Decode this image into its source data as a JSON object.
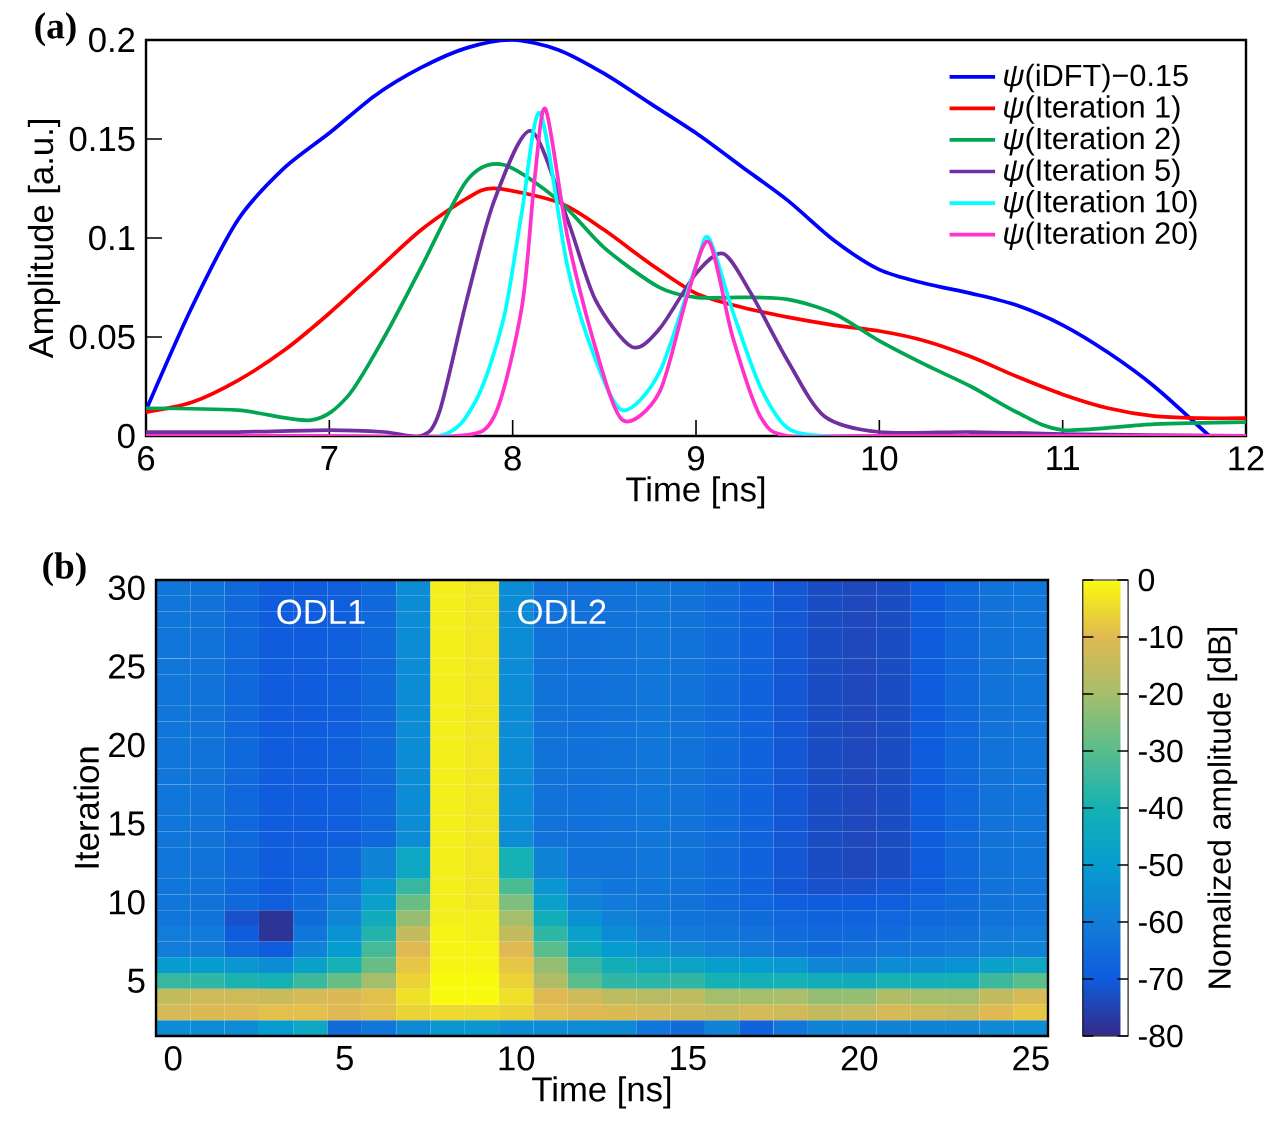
{
  "chart_data": [
    {
      "type": "line",
      "title": "(a)",
      "xlabel": "Time [ns]",
      "ylabel": "Amplitude [a.u.]",
      "xlim": [
        6,
        12
      ],
      "ylim": [
        0,
        0.2
      ],
      "xticks": [
        6,
        7,
        8,
        9,
        10,
        11,
        12
      ],
      "yticks": [
        0,
        0.05,
        0.1,
        0.15,
        0.2
      ],
      "legend": "top right",
      "series": [
        {
          "name": "*ψ*(iDFT)−0.15",
          "color": "#0000ff",
          "x": [
            6,
            6.25,
            6.5,
            6.75,
            7,
            7.25,
            7.5,
            7.75,
            8,
            8.25,
            8.5,
            8.75,
            9,
            9.25,
            9.5,
            9.75,
            10,
            10.25,
            10.5,
            10.75,
            11,
            11.25,
            11.5,
            11.8
          ],
          "values": [
            0.013,
            0.065,
            0.109,
            0.135,
            0.153,
            0.172,
            0.186,
            0.196,
            0.2,
            0.195,
            0.183,
            0.168,
            0.153,
            0.136,
            0.119,
            0.099,
            0.084,
            0.077,
            0.072,
            0.066,
            0.056,
            0.042,
            0.025,
            0
          ]
        },
        {
          "name": "*ψ*(Iteration 1)",
          "color": "#ff0000",
          "x": [
            6,
            6.25,
            6.5,
            6.75,
            7,
            7.25,
            7.5,
            7.75,
            7.9,
            8.25,
            8.5,
            8.75,
            9,
            9.25,
            9.5,
            9.75,
            10,
            10.25,
            10.5,
            10.75,
            11,
            11.25,
            11.5,
            11.75,
            12
          ],
          "values": [
            0.012,
            0.017,
            0.028,
            0.043,
            0.062,
            0.083,
            0.104,
            0.12,
            0.125,
            0.118,
            0.104,
            0.087,
            0.072,
            0.065,
            0.06,
            0.056,
            0.053,
            0.048,
            0.04,
            0.03,
            0.021,
            0.014,
            0.01,
            0.009,
            0.009
          ]
        },
        {
          "name": "*ψ*(Iteration 2)",
          "color": "#00a651",
          "x": [
            6,
            6.5,
            6.9,
            7.1,
            7.3,
            7.5,
            7.75,
            7.95,
            8.25,
            8.5,
            8.8,
            9,
            9.25,
            9.5,
            9.75,
            10,
            10.25,
            10.5,
            10.75,
            11,
            11.5,
            12
          ],
          "values": [
            0.014,
            0.013,
            0.008,
            0.02,
            0.05,
            0.085,
            0.129,
            0.137,
            0.119,
            0.095,
            0.075,
            0.07,
            0.07,
            0.069,
            0.062,
            0.048,
            0.036,
            0.025,
            0.012,
            0.003,
            0.006,
            0.007
          ]
        },
        {
          "name": "*ψ*(Iteration 5)",
          "color": "#7030a0",
          "x": [
            6,
            6.5,
            7,
            7.3,
            7.5,
            7.6,
            7.75,
            7.9,
            8.1,
            8.3,
            8.45,
            8.65,
            8.8,
            9,
            9.15,
            9.3,
            9.5,
            9.7,
            10,
            10.5,
            11,
            12
          ],
          "values": [
            0.002,
            0.002,
            0.003,
            0.002,
            0,
            0.012,
            0.069,
            0.119,
            0.154,
            0.109,
            0.069,
            0.045,
            0.054,
            0.082,
            0.092,
            0.072,
            0.038,
            0.01,
            0.002,
            0.002,
            0.001,
            0
          ]
        },
        {
          "name": "*ψ*(Iteration 10)",
          "color": "#00ffff",
          "x": [
            6,
            7,
            7.6,
            7.8,
            7.95,
            8.05,
            8.15,
            8.3,
            8.45,
            8.6,
            8.8,
            9,
            9.07,
            9.2,
            9.35,
            9.5,
            9.7,
            10,
            12
          ],
          "values": [
            0,
            0,
            0,
            0.018,
            0.059,
            0.113,
            0.163,
            0.085,
            0.039,
            0.013,
            0.032,
            0.086,
            0.1,
            0.063,
            0.025,
            0.004,
            0,
            0,
            0
          ]
        },
        {
          "name": "*ψ*(Iteration 20)",
          "color": "#ff33cc",
          "x": [
            6,
            7,
            7.7,
            7.9,
            8.05,
            8.12,
            8.18,
            8.3,
            8.45,
            8.6,
            8.8,
            8.95,
            9.07,
            9.2,
            9.35,
            9.5,
            10,
            12
          ],
          "values": [
            0,
            0,
            0,
            0.01,
            0.065,
            0.13,
            0.165,
            0.1,
            0.045,
            0.008,
            0.022,
            0.07,
            0.098,
            0.05,
            0.01,
            0,
            0,
            0
          ]
        }
      ]
    },
    {
      "type": "heatmap",
      "title": "(b)",
      "xlabel": "Time [ns]",
      "ylabel": "Iteration",
      "clabel": "Nomalized amplitude [dB]",
      "clim": [
        -80,
        0
      ],
      "cticks": [
        0,
        -10,
        -20,
        -30,
        -40,
        -50,
        -60,
        -70,
        -80
      ],
      "annotations": [
        "ODL1",
        "ODL2"
      ],
      "categories": [
        "0",
        null,
        null,
        null,
        null,
        "5",
        null,
        null,
        null,
        null,
        "10",
        null,
        null,
        null,
        null,
        "15",
        null,
        null,
        null,
        null,
        "20",
        null,
        null,
        null,
        null,
        "25"
      ],
      "y_categories": [
        "30",
        null,
        null,
        null,
        null,
        "25",
        null,
        null,
        null,
        null,
        "20",
        null,
        null,
        null,
        null,
        "15",
        null,
        null,
        null,
        null,
        "10",
        null,
        null,
        null,
        null,
        "5",
        null,
        null,
        null
      ],
      "cells": [
        [
          -62,
          -63,
          -66,
          -70,
          -70,
          -69,
          -66,
          -55,
          -2,
          -3,
          -55,
          -63,
          -64,
          -63,
          -62,
          -63,
          -65,
          -68,
          -71,
          -73,
          -74,
          -73,
          -70,
          -66,
          -63,
          -62
        ],
        [
          -62,
          -63,
          -66,
          -70,
          -70,
          -69,
          -66,
          -55,
          -2,
          -3,
          -55,
          -63,
          -64,
          -63,
          -62,
          -63,
          -65,
          -68,
          -71,
          -73,
          -74,
          -73,
          -70,
          -66,
          -63,
          -62
        ],
        [
          -62,
          -63,
          -66,
          -70,
          -70,
          -69,
          -66,
          -55,
          -2,
          -3,
          -55,
          -63,
          -64,
          -63,
          -62,
          -63,
          -65,
          -68,
          -71,
          -73,
          -74,
          -73,
          -70,
          -66,
          -63,
          -62
        ],
        [
          -62,
          -63,
          -66,
          -70,
          -70,
          -69,
          -66,
          -55,
          -2,
          -3,
          -55,
          -63,
          -64,
          -63,
          -62,
          -63,
          -65,
          -68,
          -71,
          -73,
          -74,
          -73,
          -70,
          -66,
          -63,
          -62
        ],
        [
          -62,
          -63,
          -66,
          -70,
          -70,
          -69,
          -66,
          -55,
          -2,
          -3,
          -55,
          -63,
          -64,
          -63,
          -62,
          -63,
          -65,
          -68,
          -71,
          -73,
          -74,
          -73,
          -70,
          -66,
          -63,
          -62
        ],
        [
          -62,
          -63,
          -66,
          -70,
          -70,
          -69,
          -66,
          -55,
          -2,
          -3,
          -55,
          -63,
          -64,
          -63,
          -62,
          -63,
          -65,
          -68,
          -71,
          -73,
          -74,
          -73,
          -70,
          -66,
          -63,
          -62
        ],
        [
          -62,
          -63,
          -66,
          -70,
          -70,
          -69,
          -66,
          -55,
          -2,
          -3,
          -55,
          -63,
          -64,
          -63,
          -62,
          -63,
          -65,
          -68,
          -71,
          -73,
          -74,
          -73,
          -70,
          -66,
          -63,
          -62
        ],
        [
          -62,
          -63,
          -66,
          -70,
          -70,
          -69,
          -66,
          -55,
          -2,
          -3,
          -55,
          -63,
          -64,
          -63,
          -62,
          -63,
          -65,
          -68,
          -71,
          -73,
          -74,
          -73,
          -70,
          -66,
          -63,
          -62
        ],
        [
          -62,
          -63,
          -66,
          -70,
          -70,
          -69,
          -66,
          -55,
          -2,
          -3,
          -55,
          -63,
          -64,
          -63,
          -62,
          -63,
          -65,
          -68,
          -71,
          -73,
          -74,
          -73,
          -70,
          -66,
          -63,
          -62
        ],
        [
          -62,
          -63,
          -66,
          -70,
          -70,
          -69,
          -66,
          -55,
          -2,
          -3,
          -55,
          -63,
          -64,
          -63,
          -62,
          -63,
          -65,
          -68,
          -71,
          -73,
          -74,
          -73,
          -70,
          -66,
          -63,
          -62
        ],
        [
          -62,
          -63,
          -66,
          -70,
          -70,
          -69,
          -66,
          -55,
          -2,
          -3,
          -55,
          -63,
          -64,
          -63,
          -62,
          -63,
          -65,
          -68,
          -71,
          -73,
          -74,
          -73,
          -70,
          -66,
          -63,
          -62
        ],
        [
          -62,
          -63,
          -66,
          -70,
          -70,
          -69,
          -66,
          -55,
          -2,
          -3,
          -55,
          -63,
          -64,
          -63,
          -62,
          -63,
          -65,
          -68,
          -71,
          -73,
          -74,
          -73,
          -70,
          -66,
          -63,
          -62
        ],
        [
          -62,
          -63,
          -66,
          -70,
          -70,
          -69,
          -66,
          -55,
          -2,
          -3,
          -55,
          -63,
          -64,
          -63,
          -62,
          -63,
          -65,
          -68,
          -71,
          -73,
          -74,
          -73,
          -70,
          -66,
          -63,
          -62
        ],
        [
          -62,
          -63,
          -66,
          -70,
          -70,
          -69,
          -66,
          -55,
          -2,
          -3,
          -55,
          -63,
          -64,
          -63,
          -62,
          -63,
          -65,
          -68,
          -71,
          -73,
          -74,
          -73,
          -70,
          -66,
          -63,
          -62
        ],
        [
          -62,
          -63,
          -66,
          -70,
          -70,
          -69,
          -66,
          -55,
          -2,
          -3,
          -55,
          -63,
          -64,
          -63,
          -62,
          -63,
          -65,
          -68,
          -71,
          -73,
          -74,
          -73,
          -70,
          -66,
          -63,
          -62
        ],
        [
          -62,
          -63,
          -66,
          -70,
          -70,
          -69,
          -66,
          -55,
          -2,
          -3,
          -55,
          -63,
          -64,
          -63,
          -62,
          -63,
          -65,
          -68,
          -71,
          -73,
          -74,
          -73,
          -70,
          -66,
          -63,
          -62
        ],
        [
          -62,
          -63,
          -66,
          -70,
          -70,
          -69,
          -66,
          -55,
          -2,
          -3,
          -55,
          -63,
          -64,
          -63,
          -62,
          -63,
          -65,
          -68,
          -71,
          -73,
          -74,
          -73,
          -70,
          -66,
          -63,
          -62
        ],
        [
          -62,
          -63,
          -66,
          -70,
          -69,
          -66,
          -58,
          -45,
          -2,
          -3,
          -40,
          -58,
          -63,
          -63,
          -62,
          -63,
          -65,
          -68,
          -71,
          -73,
          -74,
          -73,
          -70,
          -66,
          -63,
          -62
        ],
        [
          -62,
          -63,
          -66,
          -70,
          -69,
          -66,
          -58,
          -45,
          -2,
          -3,
          -40,
          -58,
          -63,
          -63,
          -62,
          -63,
          -65,
          -68,
          -71,
          -73,
          -74,
          -73,
          -70,
          -66,
          -63,
          -62
        ],
        [
          -62,
          -63,
          -66,
          -70,
          -67,
          -62,
          -52,
          -35,
          -2,
          -3,
          -32,
          -52,
          -60,
          -62,
          -62,
          -63,
          -65,
          -68,
          -71,
          -72,
          -72,
          -71,
          -69,
          -66,
          -63,
          -62
        ],
        [
          -62,
          -63,
          -66,
          -69,
          -65,
          -60,
          -48,
          -28,
          -2,
          -3,
          -25,
          -48,
          -58,
          -61,
          -62,
          -63,
          -65,
          -67,
          -69,
          -70,
          -70,
          -69,
          -67,
          -65,
          -63,
          -62
        ],
        [
          -62,
          -63,
          -72,
          -78,
          -65,
          -57,
          -43,
          -22,
          -2,
          -2,
          -20,
          -42,
          -54,
          -59,
          -61,
          -63,
          -64,
          -65,
          -67,
          -68,
          -68,
          -67,
          -66,
          -65,
          -63,
          -62
        ],
        [
          -60,
          -61,
          -70,
          -78,
          -62,
          -53,
          -38,
          -15,
          -1,
          -2,
          -15,
          -36,
          -48,
          -55,
          -59,
          -61,
          -62,
          -63,
          -65,
          -66,
          -66,
          -65,
          -64,
          -63,
          -61,
          -60
        ],
        [
          -60,
          -61,
          -66,
          -70,
          -58,
          -50,
          -33,
          -10,
          -1,
          -1,
          -10,
          -30,
          -44,
          -50,
          -53,
          -56,
          -59,
          -61,
          -63,
          -65,
          -64,
          -62,
          -62,
          -61,
          -59,
          -58
        ],
        [
          -50,
          -50,
          -52,
          -55,
          -48,
          -40,
          -28,
          -8,
          -1,
          -1,
          -8,
          -22,
          -35,
          -42,
          -45,
          -46,
          -49,
          -50,
          -52,
          -57,
          -58,
          -55,
          -55,
          -53,
          -48,
          -45
        ],
        [
          -35,
          -36,
          -39,
          -40,
          -34,
          -28,
          -20,
          -6,
          0,
          0,
          -6,
          -18,
          -30,
          -36,
          -37,
          -36,
          -40,
          -41,
          -40,
          -42,
          -43,
          -40,
          -41,
          -40,
          -34,
          -30
        ],
        [
          -15,
          -13,
          -13,
          -14,
          -12,
          -11,
          -9,
          -4,
          0,
          0,
          -4,
          -10,
          -13,
          -16,
          -17,
          -16,
          -20,
          -20,
          -19,
          -22,
          -22,
          -18,
          -20,
          -20,
          -15,
          -12
        ],
        [
          -12,
          -11,
          -10,
          -9,
          -9,
          -10,
          -9,
          -6,
          -5,
          -5,
          -6,
          -9,
          -10,
          -11,
          -12,
          -13,
          -14,
          -12,
          -13,
          -15,
          -14,
          -12,
          -13,
          -14,
          -10,
          -8
        ],
        [
          -55,
          -55,
          -55,
          -50,
          -45,
          -65,
          -62,
          -56,
          -52,
          -52,
          -55,
          -55,
          -55,
          -56,
          -62,
          -65,
          -58,
          -68,
          -62,
          -58,
          -58,
          -58,
          -58,
          -58,
          -56,
          -55
        ]
      ]
    }
  ]
}
